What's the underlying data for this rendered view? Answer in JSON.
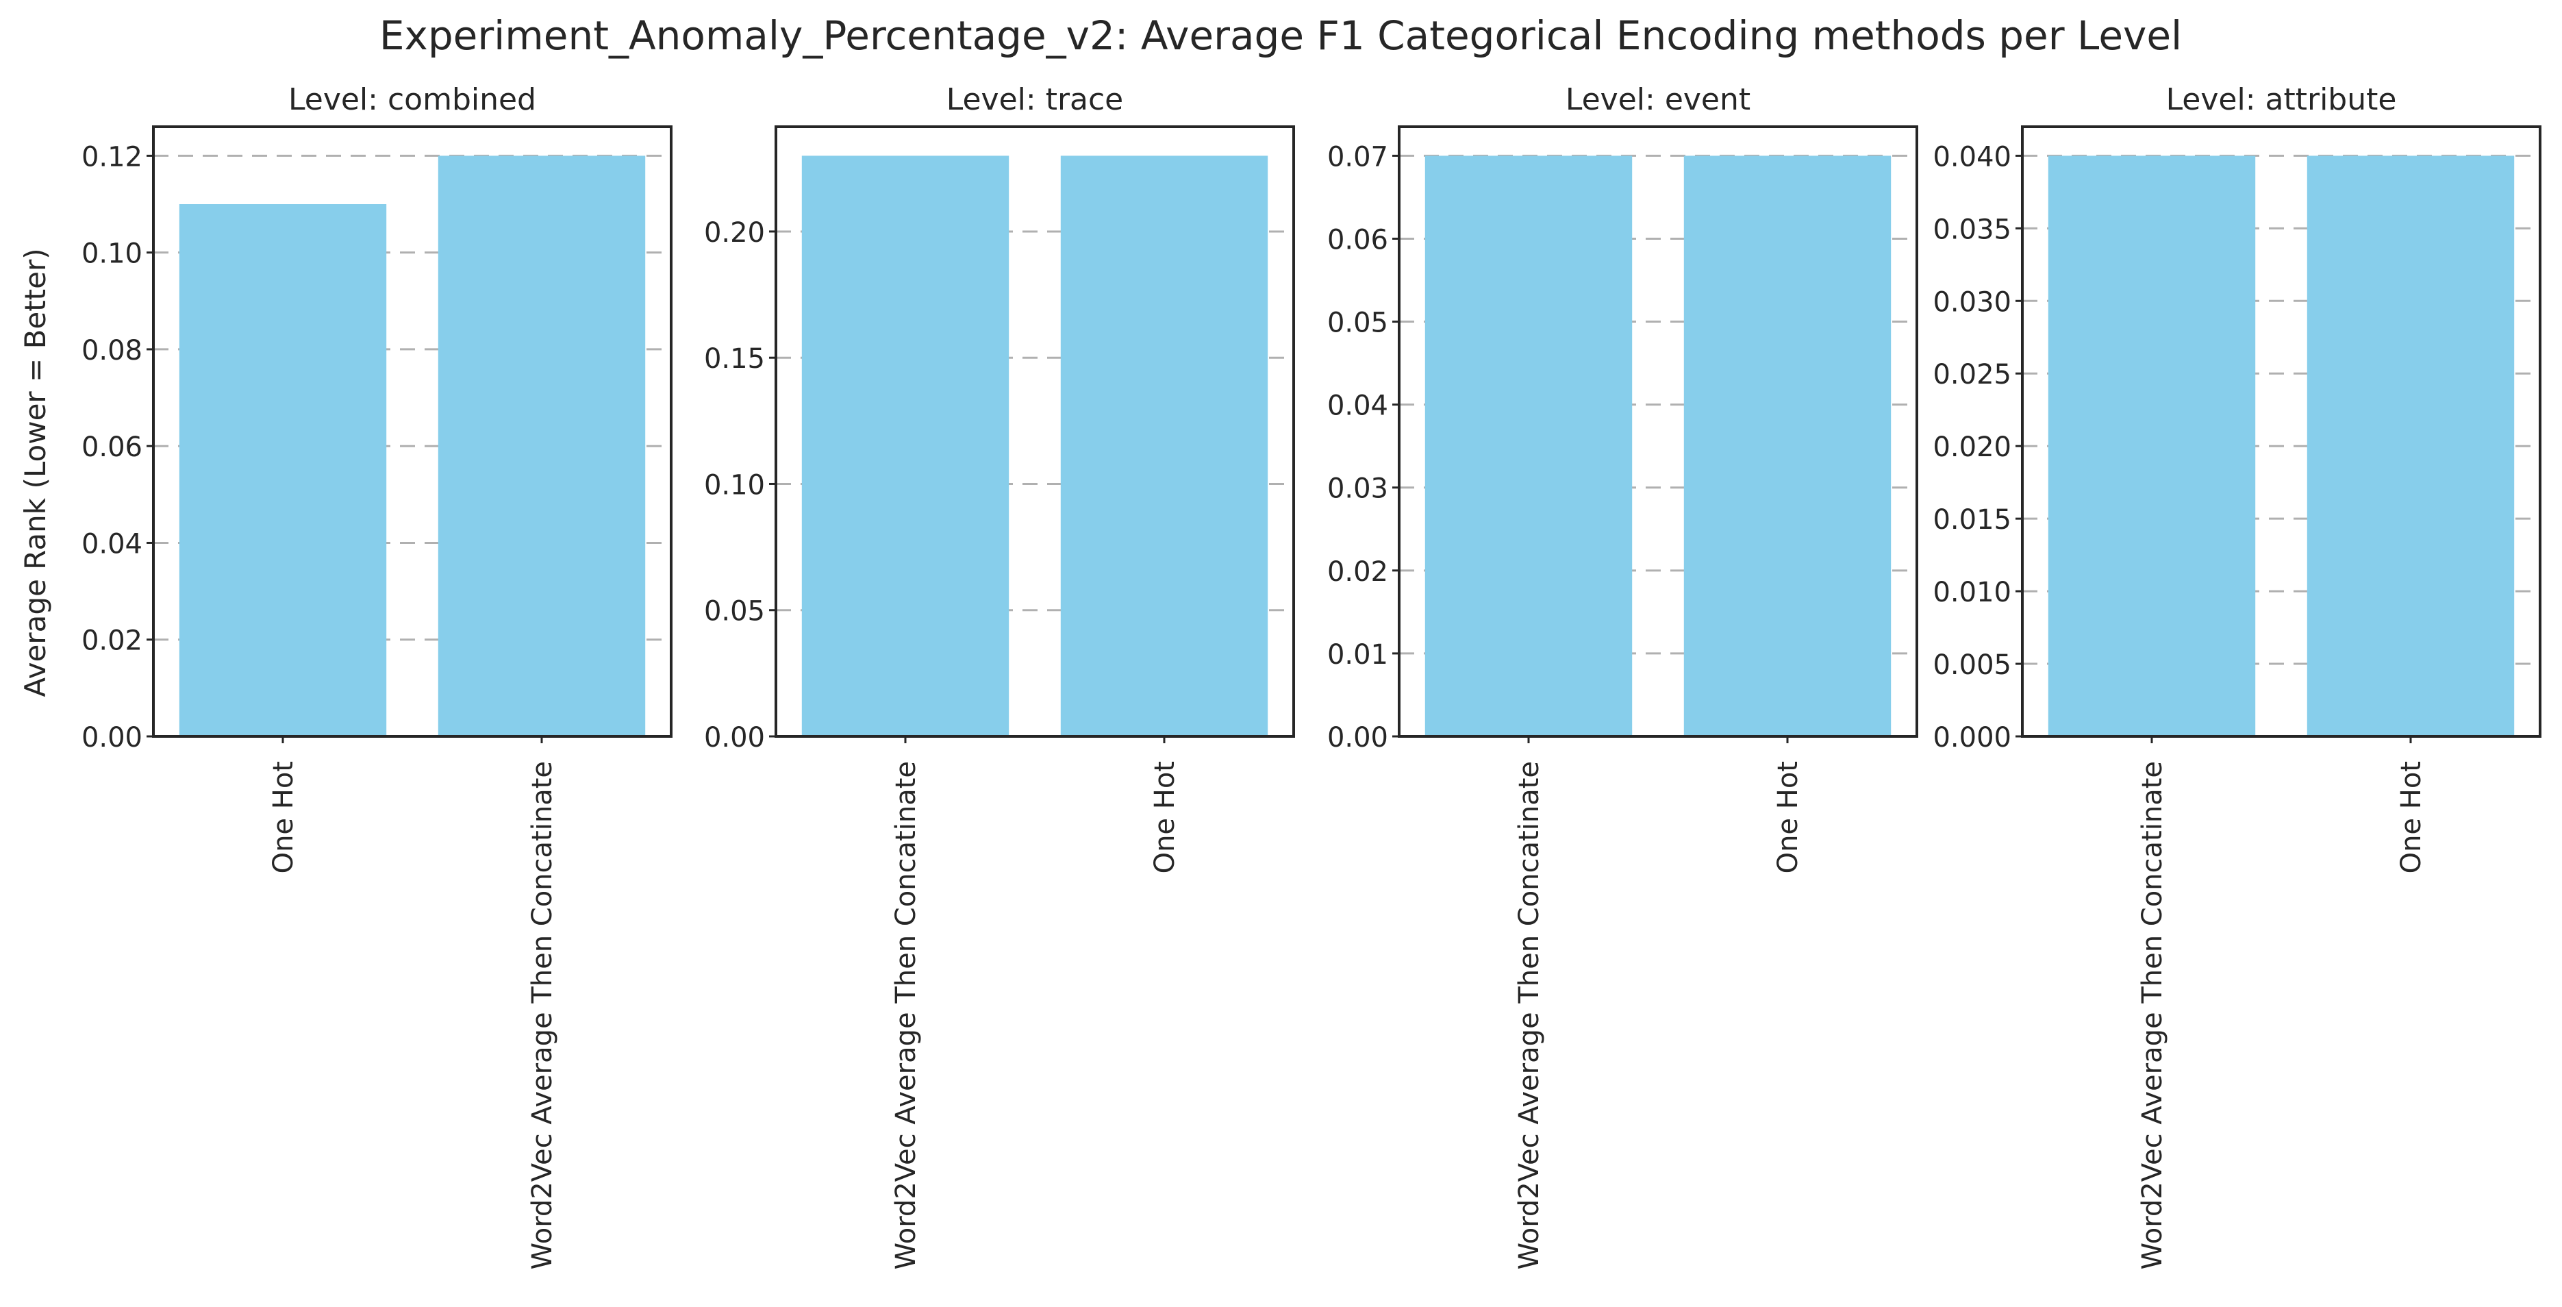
{
  "figure": {
    "title": "Experiment_Anomaly_Percentage_v2: Average F1 Categorical Encoding methods per Level",
    "ylabel": "Average Rank (Lower = Better)"
  },
  "colors": {
    "bar": "#87CEEB",
    "axis": "#262626",
    "grid": "#b0b0b0",
    "background": "#ffffff"
  },
  "chart_data": [
    {
      "type": "bar",
      "title": "Level: combined",
      "categories": [
        "One Hot",
        "Word2Vec Average Then Concatinate"
      ],
      "values": [
        0.11,
        0.12
      ],
      "ylabel": "Average Rank (Lower = Better)",
      "xlabel": "",
      "ylim": [
        0,
        0.126
      ],
      "yticks": [
        "0.00",
        "0.02",
        "0.04",
        "0.06",
        "0.08",
        "0.10",
        "0.12"
      ],
      "grid": "horizontal dashed"
    },
    {
      "type": "bar",
      "title": "Level: trace",
      "categories": [
        "Word2Vec Average Then Concatinate",
        "One Hot"
      ],
      "values": [
        0.23,
        0.23
      ],
      "xlabel": "",
      "ylim": [
        0,
        0.2415
      ],
      "yticks": [
        "0.00",
        "0.05",
        "0.10",
        "0.15",
        "0.20"
      ],
      "grid": "horizontal dashed"
    },
    {
      "type": "bar",
      "title": "Level: event",
      "categories": [
        "Word2Vec Average Then Concatinate",
        "One Hot"
      ],
      "values": [
        0.07,
        0.07
      ],
      "xlabel": "",
      "ylim": [
        0,
        0.0735
      ],
      "yticks": [
        "0.00",
        "0.01",
        "0.02",
        "0.03",
        "0.04",
        "0.05",
        "0.06",
        "0.07"
      ],
      "grid": "horizontal dashed"
    },
    {
      "type": "bar",
      "title": "Level: attribute",
      "categories": [
        "Word2Vec Average Then Concatinate",
        "One Hot"
      ],
      "values": [
        0.04,
        0.04
      ],
      "xlabel": "",
      "ylim": [
        0,
        0.042
      ],
      "yticks": [
        "0.000",
        "0.005",
        "0.010",
        "0.015",
        "0.020",
        "0.025",
        "0.030",
        "0.035",
        "0.040"
      ],
      "grid": "horizontal dashed"
    }
  ]
}
